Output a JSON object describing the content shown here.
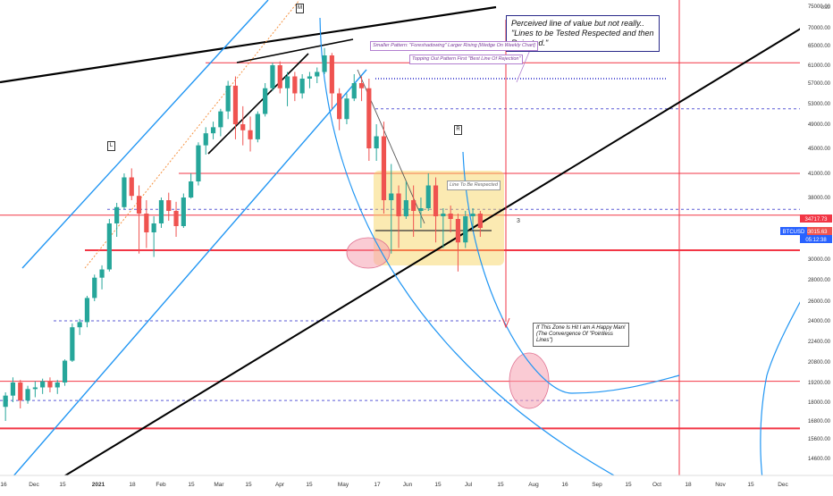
{
  "chart_data": {
    "type": "candlestick",
    "symbol": "BTCUSD",
    "y_unit": "USD",
    "x_tick_labels": [
      "16",
      "Dec",
      "15",
      "2021",
      "18",
      "Feb",
      "15",
      "Mar",
      "15",
      "Apr",
      "15",
      "May",
      "17",
      "Jun",
      "15",
      "Jul",
      "15",
      "Aug",
      "16",
      "Sep",
      "15",
      "Oct",
      "18",
      "Nov",
      "15",
      "Dec"
    ],
    "y_tick_labels": [
      "75000.00",
      "70000.00",
      "65000.00",
      "61000.00",
      "57000.00",
      "53000.00",
      "49000.00",
      "45000.00",
      "41000.00",
      "38000.00",
      "34000.00",
      "32000.00",
      "30000.00",
      "28000.00",
      "26000.00",
      "24000.00",
      "22400.00",
      "20800.00",
      "19200.00",
      "18000.00",
      "16800.00",
      "15600.00",
      "14600.00"
    ],
    "price_labels": [
      {
        "text": "34717.73",
        "color": "#f23645"
      },
      {
        "text": "33015.63",
        "color": "#ffffff"
      },
      {
        "text": "BTCUSD",
        "color": "#2962ff"
      },
      {
        "text": "05:12:38",
        "color": "#2962ff"
      }
    ],
    "colors": {
      "up": "#26a69a",
      "down": "#ef5350",
      "resistance": "#f23645",
      "trend": "#000000",
      "channel": "#2196f3",
      "zone": "#f7d154",
      "ellipse": "#f5a0b0"
    },
    "candles": [
      [
        17.7,
        18.6,
        16.8,
        18.4
      ],
      [
        18.4,
        19.6,
        18.0,
        19.2
      ],
      [
        19.2,
        19.4,
        17.6,
        18.1
      ],
      [
        18.1,
        19.0,
        17.9,
        18.8
      ],
      [
        18.8,
        19.3,
        18.3,
        18.9
      ],
      [
        18.9,
        19.5,
        18.5,
        19.3
      ],
      [
        19.3,
        19.6,
        18.6,
        18.9
      ],
      [
        18.9,
        19.4,
        18.5,
        19.2
      ],
      [
        19.2,
        21.0,
        19.0,
        20.9
      ],
      [
        20.9,
        23.8,
        20.8,
        23.5
      ],
      [
        23.5,
        24.2,
        22.9,
        23.9
      ],
      [
        23.9,
        26.5,
        23.5,
        26.3
      ],
      [
        26.3,
        28.5,
        26.0,
        28.2
      ],
      [
        28.2,
        29.4,
        27.1,
        29.0
      ],
      [
        29.0,
        34.0,
        28.8,
        33.5
      ],
      [
        33.5,
        37.0,
        32.0,
        36.2
      ],
      [
        36.2,
        41.0,
        35.8,
        40.5
      ],
      [
        40.5,
        41.8,
        37.5,
        38.2
      ],
      [
        38.2,
        39.5,
        30.5,
        35.0
      ],
      [
        35.0,
        37.5,
        31.0,
        32.5
      ],
      [
        32.5,
        34.5,
        30.2,
        33.5
      ],
      [
        33.5,
        38.0,
        33.0,
        37.5
      ],
      [
        37.5,
        38.6,
        33.8,
        35.5
      ],
      [
        35.5,
        37.2,
        32.0,
        33.2
      ],
      [
        33.2,
        38.5,
        33.0,
        38.0
      ],
      [
        38.0,
        41.0,
        37.8,
        40.0
      ],
      [
        40.0,
        46.0,
        39.5,
        45.5
      ],
      [
        45.5,
        48.5,
        44.0,
        47.5
      ],
      [
        47.5,
        49.5,
        46.5,
        48.5
      ],
      [
        48.5,
        52.0,
        47.0,
        51.5
      ],
      [
        51.5,
        57.5,
        50.0,
        56.5
      ],
      [
        56.5,
        58.5,
        46.5,
        49.0
      ],
      [
        49.0,
        52.5,
        45.5,
        48.0
      ],
      [
        48.0,
        50.5,
        44.5,
        46.5
      ],
      [
        46.5,
        51.5,
        46.0,
        51.0
      ],
      [
        51.0,
        57.0,
        50.5,
        56.0
      ],
      [
        56.0,
        61.5,
        55.5,
        61.0
      ],
      [
        61.0,
        61.8,
        55.0,
        56.0
      ],
      [
        56.0,
        59.5,
        52.5,
        58.5
      ],
      [
        58.5,
        59.5,
        53.5,
        55.0
      ],
      [
        55.0,
        59.0,
        54.0,
        58.0
      ],
      [
        58.0,
        59.5,
        56.0,
        58.5
      ],
      [
        58.5,
        60.5,
        57.0,
        59.5
      ],
      [
        59.5,
        64.5,
        59.0,
        63.0
      ],
      [
        63.0,
        63.5,
        52.0,
        55.0
      ],
      [
        55.0,
        56.0,
        48.0,
        50.0
      ],
      [
        50.0,
        55.0,
        49.0,
        54.0
      ],
      [
        54.0,
        59.0,
        53.5,
        57.0
      ],
      [
        57.0,
        58.5,
        53.5,
        56.0
      ],
      [
        56.0,
        58.0,
        43.0,
        45.0
      ],
      [
        45.0,
        49.0,
        43.0,
        47.0
      ],
      [
        47.0,
        49.5,
        35.0,
        37.5
      ],
      [
        37.5,
        42.5,
        30.5,
        38.5
      ],
      [
        38.5,
        39.5,
        31.0,
        34.5
      ],
      [
        34.5,
        40.0,
        34.0,
        37.5
      ],
      [
        37.5,
        39.5,
        32.0,
        35.5
      ],
      [
        35.5,
        38.0,
        33.0,
        36.0
      ],
      [
        36.0,
        41.0,
        35.5,
        39.5
      ],
      [
        39.5,
        40.5,
        31.5,
        34.5
      ],
      [
        34.5,
        36.0,
        31.0,
        35.0
      ],
      [
        35.0,
        36.5,
        32.5,
        34.0
      ],
      [
        34.0,
        35.0,
        28.8,
        31.5
      ],
      [
        31.5,
        35.5,
        31.0,
        34.5
      ],
      [
        34.5,
        36.0,
        33.0,
        35.0
      ],
      [
        35.0,
        35.5,
        32.0,
        33.0
      ]
    ],
    "horizontal_levels": [
      {
        "price": 61500,
        "style": "solid",
        "color": "#f23645"
      },
      {
        "price": 58000,
        "style": "dotted",
        "color": "#5b5bd6"
      },
      {
        "price": 52000,
        "style": "dashed",
        "color": "#5b5bd6"
      },
      {
        "price": 41000,
        "style": "solid",
        "color": "#f23645"
      },
      {
        "price": 34717.73,
        "style": "solid",
        "color": "#f23645"
      },
      {
        "price": 35800,
        "style": "dashed",
        "color": "#5b5bd6"
      },
      {
        "price": 30800,
        "style": "solid",
        "color": "#f23645"
      },
      {
        "price": 24000,
        "style": "dashed",
        "color": "#5b5bd6"
      },
      {
        "price": 19300,
        "style": "solid",
        "color": "#f23645"
      },
      {
        "price": 18100,
        "style": "dashed",
        "color": "#5b5bd6"
      },
      {
        "price": 16300,
        "style": "solid",
        "color": "#f23645"
      }
    ],
    "annotations": {
      "top_note_line1": "Perceived line of value but not really..",
      "top_note_line2": "\"Lines to be Tested Respected and then Rejected.\"",
      "wedge_tag": "Smaller Pattern: \"Foreshadowing\" Larger Rising [Wedge On Weekly Chart]",
      "topping_tag": "Topping Out Pattern First \"Best Line Of Rejection\"",
      "line_tag": "Line To Be Respected",
      "zone_note_line1": "If This Zone Is Hit I am A Happy Man!",
      "zone_note_line2": "(The Convergence Of \"Pointless Lines\")",
      "marker_m": "M",
      "marker_l": "L",
      "marker_r": "R",
      "marker_3": "3"
    }
  }
}
